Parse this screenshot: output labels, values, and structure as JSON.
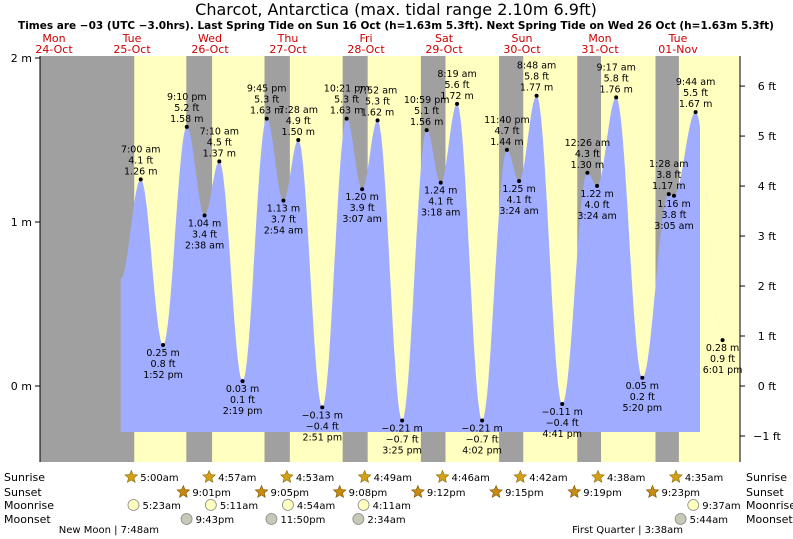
{
  "title": "Charcot, Antarctica (max. tidal range 2.10m 6.9ft)",
  "subtitle": "Times are −03 (UTC −3.0hrs). Last Spring Tide on Sun 16 Oct (h=1.63m 5.3ft). Next Spring Tide on Wed 26 Oct (h=1.63m 5.3ft)",
  "chart_data": {
    "type": "area",
    "title": "Charcot, Antarctica (max. tidal range 2.10m 6.9ft)",
    "ylim_m": [
      -0.5,
      2.05
    ],
    "y_ticks_m": [
      "2 m",
      "1 m",
      "0 m"
    ],
    "y_ticks_ft": [
      "6 ft",
      "5 ft",
      "4 ft",
      "3 ft",
      "2 ft",
      "1 ft",
      "0 ft",
      "−1 ft"
    ],
    "colors": {
      "sea": "#a0acff",
      "night": "#a0a0a0",
      "day": "#ffffc0",
      "day_label": "#cc0000"
    },
    "days": [
      {
        "name": "Mon",
        "date": "24-Oct"
      },
      {
        "name": "Tue",
        "date": "25-Oct"
      },
      {
        "name": "Wed",
        "date": "26-Oct"
      },
      {
        "name": "Thu",
        "date": "27-Oct"
      },
      {
        "name": "Fri",
        "date": "28-Oct"
      },
      {
        "name": "Sat",
        "date": "29-Oct"
      },
      {
        "name": "Sun",
        "date": "30-Oct"
      },
      {
        "name": "Mon",
        "date": "31-Oct"
      },
      {
        "name": "Tue",
        "date": "01-Nov"
      }
    ],
    "tides": [
      {
        "time": "7:00 am",
        "ft": "4.1 ft",
        "m": "1.26 m",
        "h": 1.26,
        "hours": 31.0,
        "type": "high"
      },
      {
        "time": "1:52 pm",
        "ft": "0.8 ft",
        "m": "0.25 m",
        "h": 0.25,
        "hours": 37.87,
        "type": "low"
      },
      {
        "time": "9:10 pm",
        "ft": "5.2 ft",
        "m": "1.58 m",
        "h": 1.58,
        "hours": 45.17,
        "type": "high"
      },
      {
        "time": "2:38 am",
        "ft": "3.4 ft",
        "m": "1.04 m",
        "h": 1.04,
        "hours": 50.63,
        "type": "low"
      },
      {
        "time": "7:10 am",
        "ft": "4.5 ft",
        "m": "1.37 m",
        "h": 1.37,
        "hours": 55.17,
        "type": "high"
      },
      {
        "time": "2:19 pm",
        "ft": "0.1 ft",
        "m": "0.03 m",
        "h": 0.03,
        "hours": 62.32,
        "type": "low"
      },
      {
        "time": "9:45 pm",
        "ft": "5.3 ft",
        "m": "1.63 m",
        "h": 1.63,
        "hours": 69.75,
        "type": "high"
      },
      {
        "time": "2:54 am",
        "ft": "3.7 ft",
        "m": "1.13 m",
        "h": 1.13,
        "hours": 74.9,
        "type": "low"
      },
      {
        "time": "7:28 am",
        "ft": "4.9 ft",
        "m": "1.50 m",
        "h": 1.5,
        "hours": 79.47,
        "type": "high"
      },
      {
        "time": "2:51 pm",
        "ft": "−0.4 ft",
        "m": "−0.13 m",
        "h": -0.13,
        "hours": 86.85,
        "type": "low"
      },
      {
        "time": "10:21 pm",
        "ft": "5.3 ft",
        "m": "1.63 m",
        "h": 1.63,
        "hours": 94.35,
        "type": "high"
      },
      {
        "time": "3:07 am",
        "ft": "3.9 ft",
        "m": "1.20 m",
        "h": 1.2,
        "hours": 99.12,
        "type": "low"
      },
      {
        "time": "7:52 am",
        "ft": "5.3 ft",
        "m": "1.62 m",
        "h": 1.62,
        "hours": 103.87,
        "type": "high"
      },
      {
        "time": "3:25 pm",
        "ft": "−0.7 ft",
        "m": "−0.21 m",
        "h": -0.21,
        "hours": 111.42,
        "type": "low"
      },
      {
        "time": "10:59 pm",
        "ft": "5.1 ft",
        "m": "1.56 m",
        "h": 1.56,
        "hours": 118.98,
        "type": "high"
      },
      {
        "time": "3:18 am",
        "ft": "4.1 ft",
        "m": "1.24 m",
        "h": 1.24,
        "hours": 123.3,
        "type": "low"
      },
      {
        "time": "8:19 am",
        "ft": "5.6 ft",
        "m": "1.72 m",
        "h": 1.72,
        "hours": 128.32,
        "type": "high"
      },
      {
        "time": "4:02 pm",
        "ft": "−0.7 ft",
        "m": "−0.21 m",
        "h": -0.21,
        "hours": 136.03,
        "type": "low"
      },
      {
        "time": "11:40 pm",
        "ft": "4.7 ft",
        "m": "1.44 m",
        "h": 1.44,
        "hours": 143.67,
        "type": "high"
      },
      {
        "time": "3:24 am",
        "ft": "4.1 ft",
        "m": "1.25 m",
        "h": 1.25,
        "hours": 147.4,
        "type": "low"
      },
      {
        "time": "8:48 am",
        "ft": "5.8 ft",
        "m": "1.77 m",
        "h": 1.77,
        "hours": 152.8,
        "type": "high"
      },
      {
        "time": "4:41 pm",
        "ft": "−0.4 ft",
        "m": "−0.11 m",
        "h": -0.11,
        "hours": 160.68,
        "type": "low"
      },
      {
        "time": "12:26 am",
        "ft": "4.3 ft",
        "m": "1.30 m",
        "h": 1.3,
        "hours": 168.43,
        "type": "high"
      },
      {
        "time": "3:24 am",
        "ft": "4.0 ft",
        "m": "1.22 m",
        "h": 1.22,
        "hours": 171.4,
        "type": "low"
      },
      {
        "time": "9:17 am",
        "ft": "5.8 ft",
        "m": "1.76 m",
        "h": 1.76,
        "hours": 177.28,
        "type": "high"
      },
      {
        "time": "5:20 pm",
        "ft": "0.2 ft",
        "m": "0.05 m",
        "h": 0.05,
        "hours": 185.33,
        "type": "low"
      },
      {
        "time": "1:28 am",
        "ft": "3.8 ft",
        "m": "1.17 m",
        "h": 1.17,
        "hours": 193.47,
        "type": "high"
      },
      {
        "time": "3:05 am",
        "ft": "3.8 ft",
        "m": "1.16 m",
        "h": 1.16,
        "hours": 195.08,
        "type": "low"
      },
      {
        "time": "9:44 am",
        "ft": "5.5 ft",
        "m": "1.67 m",
        "h": 1.67,
        "hours": 201.73,
        "type": "high"
      },
      {
        "time": "6:01 pm",
        "ft": "0.9 ft",
        "m": "0.28 m",
        "h": 0.28,
        "hours": 210.02,
        "type": "low"
      }
    ]
  },
  "rows": {
    "sunrise": "Sunrise",
    "sunset": "Sunset",
    "moonrise": "Moonrise",
    "moonset": "Moonset"
  },
  "sunrise": [
    {
      "time": "5:00am",
      "hours": 29.0
    },
    {
      "time": "4:57am",
      "hours": 52.95
    },
    {
      "time": "4:53am",
      "hours": 76.88
    },
    {
      "time": "4:49am",
      "hours": 100.82
    },
    {
      "time": "4:46am",
      "hours": 124.77
    },
    {
      "time": "4:42am",
      "hours": 148.7
    },
    {
      "time": "4:38am",
      "hours": 172.63
    },
    {
      "time": "4:35am",
      "hours": 196.58
    }
  ],
  "sunset": [
    {
      "time": "9:01pm",
      "hours": 45.02
    },
    {
      "time": "9:05pm",
      "hours": 69.08
    },
    {
      "time": "9:08pm",
      "hours": 93.13
    },
    {
      "time": "9:12pm",
      "hours": 117.2
    },
    {
      "time": "9:15pm",
      "hours": 141.25
    },
    {
      "time": "9:19pm",
      "hours": 165.32
    },
    {
      "time": "9:23pm",
      "hours": 189.38
    }
  ],
  "moonrise": [
    {
      "time": "5:23am",
      "hours": 29.38
    },
    {
      "time": "5:11am",
      "hours": 53.18
    },
    {
      "time": "4:54am",
      "hours": 76.9
    },
    {
      "time": "4:11am",
      "hours": 100.18
    },
    {
      "time": "9:37am",
      "hours": 201.62
    }
  ],
  "moonset": [
    {
      "time": "9:43pm",
      "hours": 45.72
    },
    {
      "time": "11:50pm",
      "hours": 71.83
    },
    {
      "time": "2:34am",
      "hours": 98.57
    },
    {
      "time": "5:44am",
      "hours": 197.73
    }
  ],
  "moon_phases": [
    {
      "label": "New Moon | 7:48am"
    },
    {
      "label": "First Quarter | 3:38am"
    }
  ]
}
